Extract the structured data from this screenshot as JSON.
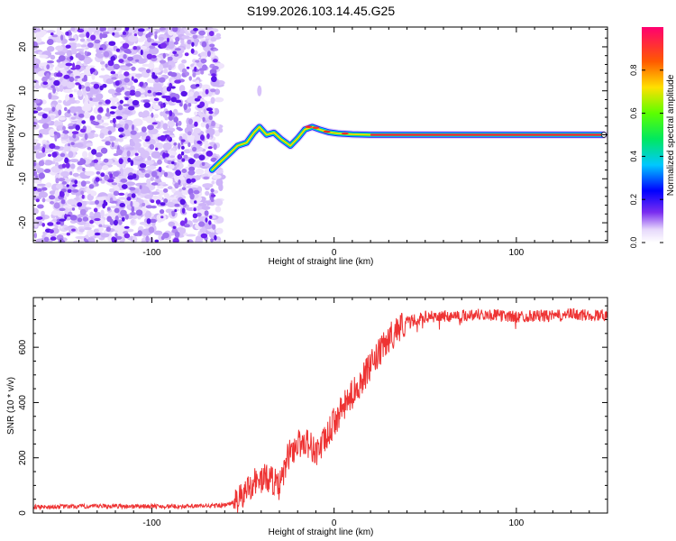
{
  "title": "S199.2026.103.14.45.G25",
  "chart_data": [
    {
      "type": "heatmap",
      "name": "spectrogram",
      "xlabel": "Height of straight line (km)",
      "ylabel": "Frequency (Hz)",
      "xlim": [
        -165,
        150
      ],
      "ylim": [
        -24.5,
        24.5
      ],
      "x_ticks": [
        -100,
        0,
        100
      ],
      "y_ticks": [
        -20,
        -10,
        0,
        10,
        20
      ],
      "noise_region_x": [
        -165,
        -65
      ],
      "signal_track": [
        {
          "x": -67,
          "y": -8
        },
        {
          "x": -62,
          "y": -6
        },
        {
          "x": -58,
          "y": -4.5
        },
        {
          "x": -53,
          "y": -2.5
        },
        {
          "x": -48,
          "y": -1.8
        },
        {
          "x": -44,
          "y": 0.5
        },
        {
          "x": -41,
          "y": 1.8
        },
        {
          "x": -37,
          "y": 0
        },
        {
          "x": -33,
          "y": 0.5
        },
        {
          "x": -29,
          "y": -1
        },
        {
          "x": -24,
          "y": -2.5
        },
        {
          "x": -20,
          "y": -0.8
        },
        {
          "x": -16,
          "y": 1.2
        },
        {
          "x": -12,
          "y": 1.8
        },
        {
          "x": -8,
          "y": 1.2
        },
        {
          "x": -3,
          "y": 0.6
        },
        {
          "x": 2,
          "y": 0.3
        },
        {
          "x": 10,
          "y": 0.1
        },
        {
          "x": 20,
          "y": 0.0
        },
        {
          "x": 60,
          "y": 0.0
        },
        {
          "x": 100,
          "y": 0.0
        },
        {
          "x": 148,
          "y": 0.0
        }
      ],
      "colorbar": {
        "label": "Normalized spectral amplitude",
        "range": [
          0,
          1
        ],
        "ticks": [
          "0.0",
          "0.2",
          "0.4",
          "0.6",
          "0.8"
        ]
      }
    },
    {
      "type": "line",
      "name": "snr",
      "xlabel": "Height of straight line (km)",
      "ylabel": "SNR (10 * v/v)",
      "xlim": [
        -165,
        150
      ],
      "ylim": [
        0,
        780
      ],
      "x_ticks": [
        -100,
        0,
        100
      ],
      "y_ticks": [
        0,
        200,
        400,
        600
      ],
      "color": "#ee3333",
      "series": [
        {
          "x": -165,
          "y": 22
        },
        {
          "x": -120,
          "y": 25
        },
        {
          "x": -80,
          "y": 24
        },
        {
          "x": -60,
          "y": 28
        },
        {
          "x": -52,
          "y": 45
        },
        {
          "x": -45,
          "y": 110
        },
        {
          "x": -40,
          "y": 120
        },
        {
          "x": -35,
          "y": 130
        },
        {
          "x": -30,
          "y": 90
        },
        {
          "x": -25,
          "y": 210
        },
        {
          "x": -20,
          "y": 250
        },
        {
          "x": -15,
          "y": 260
        },
        {
          "x": -10,
          "y": 220
        },
        {
          "x": -5,
          "y": 260
        },
        {
          "x": 0,
          "y": 330
        },
        {
          "x": 5,
          "y": 380
        },
        {
          "x": 10,
          "y": 430
        },
        {
          "x": 15,
          "y": 480
        },
        {
          "x": 20,
          "y": 530
        },
        {
          "x": 25,
          "y": 580
        },
        {
          "x": 30,
          "y": 630
        },
        {
          "x": 35,
          "y": 670
        },
        {
          "x": 40,
          "y": 690
        },
        {
          "x": 50,
          "y": 710
        },
        {
          "x": 60,
          "y": 712
        },
        {
          "x": 70,
          "y": 715
        },
        {
          "x": 80,
          "y": 720
        },
        {
          "x": 90,
          "y": 715
        },
        {
          "x": 100,
          "y": 710
        },
        {
          "x": 110,
          "y": 715
        },
        {
          "x": 120,
          "y": 712
        },
        {
          "x": 130,
          "y": 720
        },
        {
          "x": 140,
          "y": 715
        },
        {
          "x": 150,
          "y": 718
        }
      ]
    }
  ]
}
